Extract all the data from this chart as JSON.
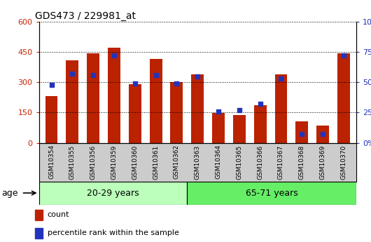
{
  "title": "GDS473 / 229981_at",
  "categories": [
    "GSM10354",
    "GSM10355",
    "GSM10356",
    "GSM10359",
    "GSM10360",
    "GSM10361",
    "GSM10362",
    "GSM10363",
    "GSM10364",
    "GSM10365",
    "GSM10366",
    "GSM10367",
    "GSM10368",
    "GSM10369",
    "GSM10370"
  ],
  "counts": [
    230,
    410,
    445,
    470,
    290,
    415,
    300,
    340,
    148,
    138,
    185,
    340,
    105,
    85,
    445
  ],
  "percentile_ranks": [
    48,
    57,
    56,
    72,
    49,
    56,
    49,
    55,
    26,
    27,
    32,
    53,
    7,
    7,
    72
  ],
  "bar_color": "#bb2200",
  "dot_color": "#2233bb",
  "ylim_left": [
    0,
    600
  ],
  "ylim_right": [
    0,
    100
  ],
  "yticks_left": [
    0,
    150,
    300,
    450,
    600
  ],
  "yticks_right": [
    0,
    25,
    50,
    75,
    100
  ],
  "group1_label": "20-29 years",
  "group2_label": "65-71 years",
  "group1_count": 7,
  "group2_count": 8,
  "age_label": "age",
  "group_bg_1": "#bbffbb",
  "group_bg_2": "#66ee66",
  "bar_width": 0.6,
  "legend_count_label": "count",
  "legend_pct_label": "percentile rank within the sample",
  "xtick_bg": "#cccccc",
  "plot_bg": "#ffffff"
}
